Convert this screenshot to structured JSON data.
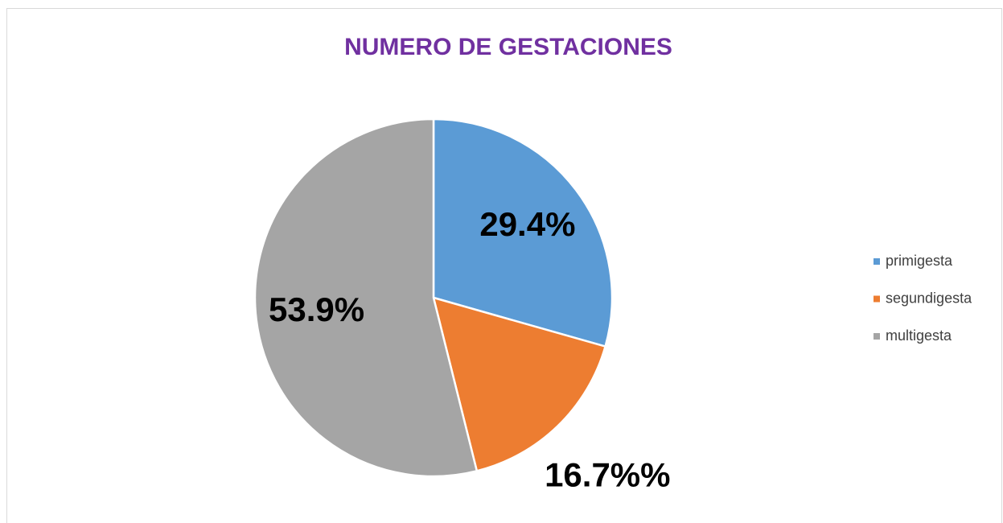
{
  "chart_data": {
    "type": "pie",
    "title": "NUMERO DE GESTACIONES",
    "categories": [
      "primigesta",
      "segundigesta",
      "multigesta"
    ],
    "values": [
      29.4,
      16.7,
      53.9
    ],
    "value_labels": [
      "29.4%",
      "16.7%%",
      "53.9%"
    ],
    "colors": [
      "#5b9bd5",
      "#ed7d31",
      "#a5a5a5"
    ],
    "legend": "right"
  }
}
